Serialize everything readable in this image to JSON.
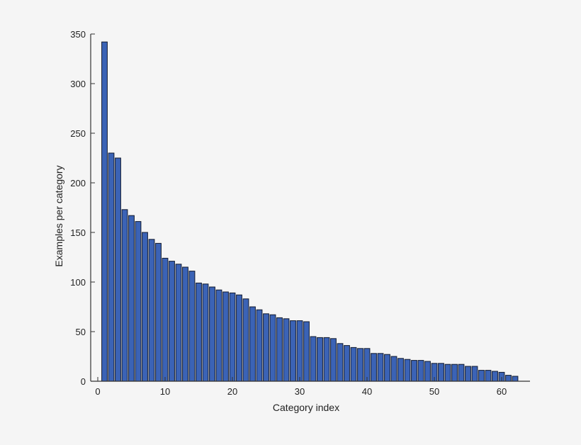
{
  "chart_data": {
    "type": "bar",
    "title": "",
    "xlabel": "Category index",
    "ylabel": "Examples per category",
    "xlim": [
      -0.5,
      64.2
    ],
    "ylim": [
      0,
      350
    ],
    "xticks": [
      0,
      10,
      20,
      30,
      40,
      50,
      60
    ],
    "yticks": [
      0,
      50,
      100,
      150,
      200,
      250,
      300,
      350
    ],
    "grid": false,
    "legend": null,
    "categories": [
      1,
      2,
      3,
      4,
      5,
      6,
      7,
      8,
      9,
      10,
      11,
      12,
      13,
      14,
      15,
      16,
      17,
      18,
      19,
      20,
      21,
      22,
      23,
      24,
      25,
      26,
      27,
      28,
      29,
      30,
      31,
      32,
      33,
      34,
      35,
      36,
      37,
      38,
      39,
      40,
      41,
      42,
      43,
      44,
      45,
      46,
      47,
      48,
      49,
      50,
      51,
      52,
      53,
      54,
      55,
      56,
      57,
      58,
      59,
      60,
      61,
      62
    ],
    "values": [
      342,
      230,
      225,
      173,
      167,
      161,
      150,
      143,
      139,
      124,
      121,
      118,
      115,
      111,
      99,
      98,
      95,
      92,
      90,
      89,
      87,
      83,
      75,
      72,
      68,
      67,
      64,
      63,
      61,
      61,
      60,
      45,
      44,
      44,
      43,
      38,
      36,
      34,
      33,
      33,
      28,
      28,
      27,
      25,
      23,
      22,
      21,
      21,
      20,
      18,
      18,
      17,
      17,
      17,
      15,
      15,
      11,
      11,
      10,
      9,
      6,
      5
    ],
    "colors": {
      "bar_fill": "#3b63b6",
      "bar_stroke": "#111a2e",
      "axis": "#333333",
      "background": "#f5f5f5"
    }
  }
}
